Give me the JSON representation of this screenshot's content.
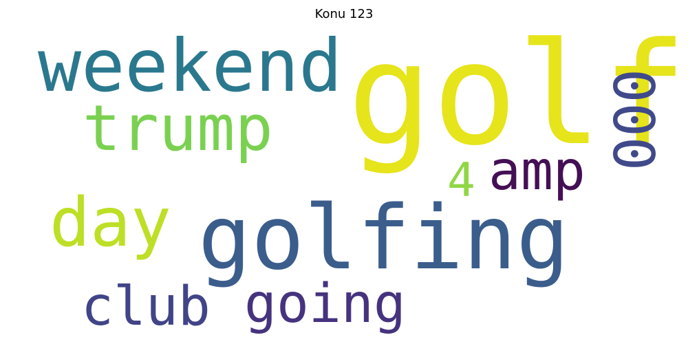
{
  "chart_data": {
    "type": "wordcloud",
    "title": "Konu 123",
    "words": [
      {
        "text": "golf",
        "color": "#e6e41a"
      },
      {
        "text": "golfing",
        "color": "#3b5d8c"
      },
      {
        "text": "weekend",
        "color": "#2a788e"
      },
      {
        "text": "trump",
        "color": "#7ad151"
      },
      {
        "text": "day",
        "color": "#bddf26"
      },
      {
        "text": "club",
        "color": "#414487"
      },
      {
        "text": "going",
        "color": "#46337e"
      },
      {
        "text": "amp",
        "color": "#440f55"
      },
      {
        "text": "000",
        "color": "#404a8a"
      },
      {
        "text": "4",
        "color": "#8fd744"
      }
    ]
  }
}
